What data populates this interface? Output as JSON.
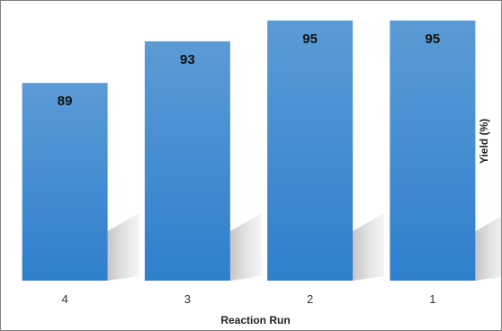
{
  "chart_data": {
    "type": "bar",
    "categories": [
      "4",
      "3",
      "2",
      "1"
    ],
    "values": [
      89,
      93,
      95,
      95
    ],
    "xlabel": "Reaction Run",
    "ylabel": "Yield (%)",
    "ylim": [
      0,
      100
    ],
    "grid": false,
    "legend": "none",
    "y_axis_side": "right",
    "colors": {
      "bar_top": "#5b9bd5",
      "bar_bottom": "#2f7fcd",
      "shadow": "#c8c8c8",
      "frame": "#7f7f7f"
    }
  }
}
